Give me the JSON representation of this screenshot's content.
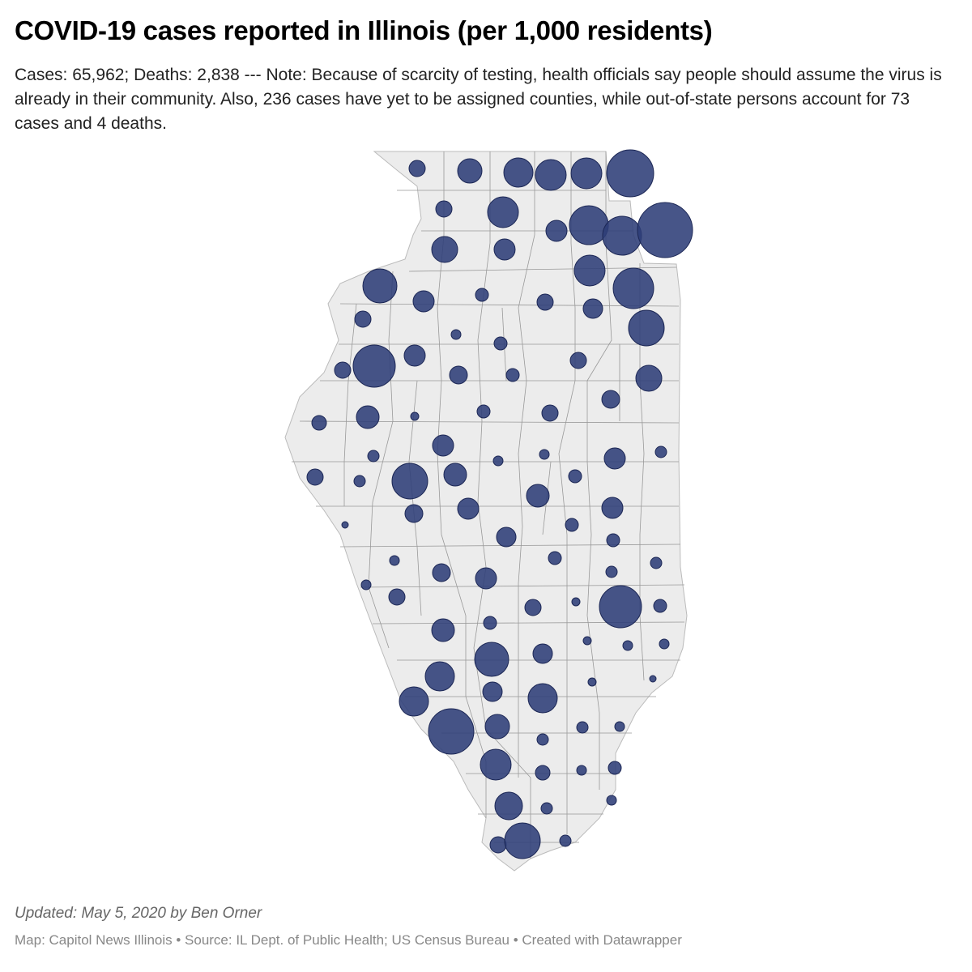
{
  "title": "COVID-19 cases reported in Illinois (per 1,000 residents)",
  "subtitle": "Cases: 65,962; Deaths: 2,838 --- Note: Because of scarcity of testing, health officials say people should assume the virus is already in their community. Also, 236 cases have yet to be assigned counties, while out-of-state persons account for 73 cases and 4 deaths.",
  "footer": {
    "updated": "Updated: May 5, 2020 by Ben Orner",
    "credit": "Map: Capitol News Illinois • Source: IL Dept. of Public Health; US Census Bureau • Created with Datawrapper"
  },
  "colors": {
    "bubble": "#2e3e78",
    "land": "#ececec",
    "border": "#999999"
  }
}
